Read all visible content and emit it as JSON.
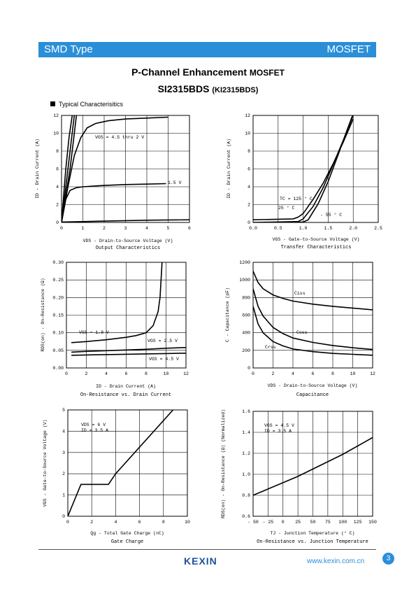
{
  "header": {
    "left": "SMD Type",
    "right": "MOSFET"
  },
  "title": {
    "main": "P-Channel Enhancement",
    "suffix": "MOSFET"
  },
  "part": {
    "main": "SI2315BDS",
    "alt": "(KI2315BDS)"
  },
  "section": "Typical  Characterisitics",
  "footer": {
    "logo": "KEXIN",
    "url": "www.kexin.com.cn",
    "page": "3"
  },
  "chart_data": [
    {
      "type": "line",
      "title": "Output Characteristics",
      "xlabel": "VDS  - Drain-to-Source Voltage (V)",
      "ylabel": "ID - Drain Current (A)",
      "xlim": [
        0,
        6
      ],
      "ylim": [
        0,
        12
      ],
      "xticks": [
        "0",
        "1",
        "2",
        "3",
        "4",
        "5",
        "6"
      ],
      "yticks": [
        "0",
        "2",
        "4",
        "6",
        "8",
        "10",
        "12"
      ],
      "series": [
        {
          "name": "VGS = 4.5 thru 2 V",
          "x": [
            0,
            0.1,
            0.2,
            0.35,
            0.5
          ],
          "y": [
            0,
            3,
            6,
            9.5,
            12
          ]
        },
        {
          "name": "",
          "x": [
            0,
            0.15,
            0.3,
            0.45,
            0.6
          ],
          "y": [
            0,
            3,
            6,
            9,
            12
          ]
        },
        {
          "name": "",
          "x": [
            0,
            0.2,
            0.4,
            0.55,
            0.7
          ],
          "y": [
            0,
            3,
            6,
            9,
            12
          ]
        },
        {
          "name": "",
          "x": [
            0,
            0.3,
            0.6,
            0.9,
            1.2,
            1.6,
            2.2,
            3,
            4,
            5
          ],
          "y": [
            0,
            4,
            7.5,
            9.5,
            10.6,
            11.1,
            11.4,
            11.6,
            11.7,
            11.8
          ]
        },
        {
          "name": "1.5 V",
          "x": [
            0,
            0.2,
            0.4,
            0.7,
            1,
            2,
            3,
            4,
            4.9
          ],
          "y": [
            0,
            2.6,
            3.6,
            3.9,
            4,
            4.15,
            4.25,
            4.3,
            4.35
          ]
        },
        {
          "name": "",
          "x": [
            0,
            2,
            4,
            6
          ],
          "y": [
            0.05,
            0.15,
            0.25,
            0.3
          ]
        }
      ]
    },
    {
      "type": "line",
      "title": "Transfer Characteristics",
      "xlabel": "VGS  - Gate-to-Source Voltage (V)",
      "ylabel": "ID - Drain Current (A)",
      "xlim": [
        0,
        2.5
      ],
      "ylim": [
        0,
        12
      ],
      "xticks": [
        "0.0",
        "0.5",
        "1.0",
        "1.5",
        "2.0",
        "2.5"
      ],
      "yticks": [
        "0",
        "2",
        "4",
        "6",
        "8",
        "10",
        "12"
      ],
      "annotations": [
        "TC = 125 ° C",
        "25 ° C",
        "- 55 ° C"
      ],
      "series": [
        {
          "name": "TC = 125 ° C",
          "x": [
            0,
            0.8,
            0.9,
            1.0,
            1.2,
            1.4,
            1.6,
            1.8,
            2.0
          ],
          "y": [
            0.3,
            0.4,
            0.6,
            1.0,
            2.6,
            4.4,
            6.6,
            9.0,
            11.6
          ]
        },
        {
          "name": "25 ° C",
          "x": [
            0,
            0.9,
            1.0,
            1.2,
            1.4,
            1.6,
            1.8,
            2.0
          ],
          "y": [
            0,
            0.1,
            0.4,
            1.8,
            3.9,
            6.5,
            9.2,
            12
          ]
        },
        {
          "name": "- 55 ° C",
          "x": [
            0,
            1.0,
            1.1,
            1.3,
            1.5,
            1.7,
            1.9,
            2.0
          ],
          "y": [
            0,
            0.05,
            0.3,
            2.1,
            4.6,
            7.6,
            10.7,
            12.2
          ]
        }
      ]
    },
    {
      "type": "line",
      "title": "On-Resistance vs. Drain Current",
      "xlabel": "ID  - Drain Current (A)",
      "ylabel": "RDS(on) - On-Resistance (Ω)",
      "xlim": [
        0,
        12
      ],
      "ylim": [
        0,
        0.3
      ],
      "xticks": [
        "0",
        "2",
        "4",
        "6",
        "8",
        "10",
        "12"
      ],
      "yticks": [
        "0.00",
        "0.05",
        "0.10",
        "0.15",
        "0.20",
        "0.25",
        "0.30"
      ],
      "series": [
        {
          "name": "VGS = 1.8 V",
          "x": [
            0.5,
            2,
            4,
            6,
            7,
            8,
            8.7,
            9.2,
            9.4,
            9.6
          ],
          "y": [
            0.072,
            0.075,
            0.08,
            0.087,
            0.092,
            0.1,
            0.12,
            0.16,
            0.2,
            0.3
          ]
        },
        {
          "name": "VGS = 2.5 V",
          "x": [
            0.5,
            2,
            4,
            6,
            8,
            10,
            12
          ],
          "y": [
            0.045,
            0.047,
            0.049,
            0.051,
            0.053,
            0.056,
            0.058
          ]
        },
        {
          "name": "VGS = 4.5 V",
          "x": [
            0.5,
            2,
            4,
            6,
            8,
            10,
            12
          ],
          "y": [
            0.036,
            0.037,
            0.038,
            0.039,
            0.04,
            0.041,
            0.042
          ]
        }
      ]
    },
    {
      "type": "line",
      "title": "Capacitance",
      "xlabel": "VDS  - Drain-to-Source Voltage (V)",
      "ylabel": "C - Capacitance (pF)",
      "xlim": [
        0,
        12
      ],
      "ylim": [
        0,
        1200
      ],
      "xticks": [
        "0",
        "2",
        "4",
        "6",
        "8",
        "10",
        "12"
      ],
      "yticks": [
        "0",
        "200",
        "400",
        "600",
        "800",
        "1000",
        "1200"
      ],
      "series": [
        {
          "name": "Ciss",
          "x": [
            0,
            0.5,
            1,
            2,
            3,
            4,
            6,
            8,
            10,
            12
          ],
          "y": [
            1100,
            970,
            900,
            830,
            790,
            760,
            725,
            700,
            680,
            660
          ]
        },
        {
          "name": "Coss",
          "x": [
            0,
            0.5,
            1,
            2,
            3,
            4,
            6,
            8,
            10,
            12
          ],
          "y": [
            900,
            700,
            590,
            460,
            390,
            340,
            290,
            255,
            230,
            210
          ]
        },
        {
          "name": "Crss",
          "x": [
            0,
            0.5,
            1,
            2,
            3,
            4,
            6,
            8,
            10,
            12
          ],
          "y": [
            700,
            500,
            400,
            300,
            250,
            215,
            185,
            165,
            155,
            145
          ]
        }
      ]
    },
    {
      "type": "line",
      "title": "Gate Charge",
      "xlabel": "Qg  - Total Gate Charge (nC)",
      "ylabel": "VGS - Gate-to-Source Voltage (V)",
      "xlim": [
        0,
        10
      ],
      "ylim": [
        0,
        5
      ],
      "xticks": [
        "0",
        "2",
        "4",
        "6",
        "8",
        "10"
      ],
      "yticks": [
        "0",
        "1",
        "2",
        "3",
        "4",
        "5"
      ],
      "annotations": [
        "VDS = 6 V",
        "ID = 3.5 A"
      ],
      "series": [
        {
          "name": "",
          "x": [
            0,
            1.1,
            3.4,
            4.0,
            8.8
          ],
          "y": [
            0,
            1.5,
            1.5,
            2.0,
            5.0
          ]
        }
      ]
    },
    {
      "type": "line",
      "title": "On-Resistance vs. Junction Temperature",
      "xlabel": "TJ - Junction Temperature (° C)",
      "ylabel": "RDS(on) - On-Resistance (Ω) (Normalized)",
      "xlim": [
        -50,
        150
      ],
      "ylim": [
        0.6,
        1.6
      ],
      "xticks": [
        "- 50",
        "- 25",
        "0",
        "25",
        "50",
        "75",
        "100",
        "125",
        "150"
      ],
      "yticks": [
        "0.6",
        "0.8",
        "1.0",
        "1.2",
        "1.4",
        "1.6"
      ],
      "annotations": [
        "VGS = 4.5 V",
        "ID = 3.5 A"
      ],
      "series": [
        {
          "name": "",
          "x": [
            -50,
            0,
            25,
            50,
            75,
            100,
            125,
            150
          ],
          "y": [
            0.8,
            0.92,
            0.98,
            1.05,
            1.12,
            1.19,
            1.27,
            1.35
          ]
        }
      ]
    }
  ]
}
